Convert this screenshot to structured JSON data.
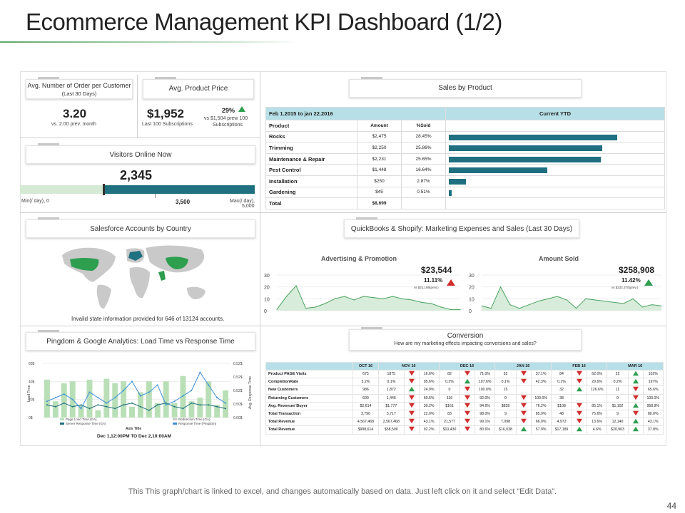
{
  "page": {
    "title": "Ecommerce Management KPI Dashboard (1/2)",
    "footer": "This This graph/chart is linked to excel, and changes automatically based on data. Just left click on it and select “Edit Data”.",
    "page_number": "44"
  },
  "kpi": {
    "orders": {
      "label": "Avg. Number of Order per Customer",
      "label_sub": "(Last 30 Days)",
      "value": "3.20",
      "sub": "vs. 2.00 prev. month"
    },
    "price": {
      "label": "Avg. Product Price",
      "value": "$1,952",
      "sub": "Last 100 Subscriptions",
      "pct": "29%",
      "pct_sub1": "vs $1,504  prew  100",
      "pct_sub2": "Subscriptions"
    },
    "visitors": {
      "label": "Visitors Online Now",
      "value": "2,345",
      "fill_fraction": 0.3538,
      "goal_fraction": 0.5,
      "min": "Min(/ day), 0",
      "mid": "3,500",
      "max1": "Max(/ day),",
      "max2": "5,000"
    }
  },
  "sales": {
    "label": "Sales by Product",
    "period": "Feb 1.2015 to jan 22.2016",
    "current": "Current YTD",
    "col_product": "Product",
    "col_amount": "Amount",
    "col_sold": "%Sold",
    "rows": [
      {
        "name": "Rocks",
        "amount": "$2,475",
        "pct": "28.45%",
        "share": 28.45
      },
      {
        "name": "Trimming",
        "amount": "$2,250",
        "pct": "25.86%",
        "share": 25.86
      },
      {
        "name": "Maintenance & Repair",
        "amount": "$2,231",
        "pct": "25.65%",
        "share": 25.65
      },
      {
        "name": "Pest Control",
        "amount": "$1,448",
        "pct": "16.64%",
        "share": 16.64
      },
      {
        "name": "Installation",
        "amount": "$250",
        "pct": "2.87%",
        "share": 2.87
      },
      {
        "name": "Gardening",
        "amount": "$45",
        "pct": "0.51%",
        "share": 0.51
      }
    ],
    "total_label": "Total",
    "total": "$8,699"
  },
  "map": {
    "label": "Salesforce Accounts by Country",
    "note": "Invalid state information provided for 646 of 13124 accounts."
  },
  "qb": {
    "label": "QuickBooks & Shopify: Marketing Expenses and Sales (Last 30 Days)"
  },
  "ping": {
    "label": "Pingdom & Google Analytics: Load Time vs Response Time",
    "ylabel": "Load Time",
    "y2label": "Avg. Response Time",
    "axis_title": "Axis Title",
    "caption": "Dec 1,12:00PM TO Dec 2,10:00AM",
    "legend": [
      "Page Load Time (GA)",
      "Redirection Time (GA)",
      "Server Response Time (GA)",
      "Response Time (Pingdom)"
    ]
  },
  "conversion": {
    "label": "Conversion",
    "sub": "How are my marketing effects impacting conversions and sales?",
    "months": [
      "OCT 16",
      "NOV 16",
      "DEC 16",
      "JAN 16",
      "FEB 16",
      "MAR 16"
    ],
    "rows": [
      {
        "name": "Product PAGE Visits",
        "cells": [
          [
            "675"
          ],
          [
            "1875",
            "dn",
            "16.6%"
          ],
          [
            "82",
            "dn",
            "71.0%"
          ],
          [
            "52",
            "dn",
            "37.1%"
          ],
          [
            "84",
            "dn",
            "62.0%"
          ],
          [
            "22",
            "up",
            "102%"
          ]
        ]
      },
      {
        "name": "CompletionRate",
        "cells": [
          [
            "3.2%"
          ],
          [
            "0.1%",
            "dn",
            "95.6%"
          ],
          [
            "0.2%",
            "up",
            "107.6%"
          ],
          [
            "0.1%",
            "dn",
            "42.3%"
          ],
          [
            "0.1%",
            "dn",
            "29.6%"
          ],
          [
            "0.2%",
            "up",
            "197%"
          ]
        ]
      },
      {
        "name": "New Customers",
        "cells": [
          [
            "986"
          ],
          [
            "1,872",
            "up",
            "24.9%"
          ],
          [
            "0",
            "dn",
            "100.0%"
          ],
          [
            "15",
            "",
            " "
          ],
          [
            "32",
            "up",
            "126.6%"
          ],
          [
            "11",
            "dn",
            "65.6%"
          ]
        ]
      },
      {
        "name": "Returning Customers",
        "cells": [
          [
            "600"
          ],
          [
            "1,446",
            "dn",
            "60.5%"
          ],
          [
            "116",
            "dn",
            "92.0%"
          ],
          [
            "0",
            "dn",
            "100.0%"
          ],
          [
            "38",
            "",
            " "
          ],
          [
            "0",
            "dn",
            "100.0%"
          ]
        ]
      },
      {
        "name": "Avg. Revenue/ Buyer",
        "cells": [
          [
            "$2,614"
          ],
          [
            "$1,777",
            "dn",
            "30.2%"
          ],
          [
            "$161",
            "dn",
            "94.6%"
          ],
          [
            "$828",
            "dn",
            "76.2%"
          ],
          [
            "$108",
            "dn",
            "85.1%"
          ],
          [
            "$1,102",
            "up",
            "958.9%"
          ]
        ]
      },
      {
        "name": "Total Transaction",
        "cells": [
          [
            "3,790"
          ],
          [
            "3,717",
            "dn",
            "22.0%"
          ],
          [
            "83",
            "dn",
            "98.0%"
          ],
          [
            "9",
            "dn",
            "85.0%"
          ],
          [
            "48",
            "dn",
            "75.6%"
          ],
          [
            "9",
            "dn",
            "80.0%"
          ]
        ]
      },
      {
        "name": "Total Revenue",
        "cells": [
          [
            "4,567,468"
          ],
          [
            "2,567,468",
            "dn",
            "43.1%"
          ],
          [
            "21,577",
            "dn",
            "99.1%"
          ],
          [
            "7,098",
            "dn",
            "66.0%"
          ],
          [
            "4,972",
            "dn",
            "13.6%"
          ],
          [
            "12,140",
            "up",
            "43.1%"
          ]
        ]
      },
      {
        "name": "Total Revenue",
        "cells": [
          [
            "$998,614"
          ],
          [
            "$58,500",
            "dn",
            "92.2%"
          ],
          [
            "$10,430",
            "dn",
            "80.6%"
          ],
          [
            "$16,038",
            "up",
            "57.9%"
          ],
          [
            "$17,189",
            "up",
            "4.6%"
          ],
          [
            "$20,903",
            "up",
            "37.8%"
          ]
        ]
      }
    ]
  },
  "chart_data": [
    {
      "type": "area",
      "title": "Advertising & Promotion",
      "x": [
        1,
        2,
        3,
        4,
        5,
        6,
        7,
        8,
        9,
        10,
        11,
        12,
        13,
        14,
        15,
        16,
        17,
        18,
        19,
        20
      ],
      "values": [
        1,
        12,
        21,
        2,
        3,
        6,
        10,
        12,
        9,
        12,
        11,
        10,
        12,
        10,
        9,
        7,
        6,
        3,
        1,
        1
      ],
      "ylim": [
        0,
        30
      ],
      "yticks": [
        "0",
        "10",
        "20",
        "30"
      ],
      "headline": "$23,544",
      "change": "11.11%",
      "change_sub": "vs $21,189(prev.)"
    },
    {
      "type": "area",
      "title": "Amount Sold",
      "x": [
        1,
        2,
        3,
        4,
        5,
        6,
        7,
        8,
        9,
        10,
        11,
        12,
        13,
        14,
        15,
        16,
        17,
        18,
        19,
        20
      ],
      "values": [
        4,
        2,
        20,
        5,
        2,
        5,
        8,
        10,
        12,
        9,
        2,
        10,
        9,
        8,
        7,
        6,
        10,
        3,
        5,
        4
      ],
      "ylim": [
        0,
        30
      ],
      "yticks": [
        "0",
        "10",
        "20",
        "30"
      ],
      "headline": "$258,908",
      "change": "11.42%",
      "change_sub": "vs $232,370(prev.)"
    },
    {
      "type": "bar",
      "title": "Pingdom & Google Analytics",
      "categories": [
        "1",
        "2",
        "3",
        "4",
        "5",
        "6",
        "7",
        "8",
        "9",
        "10",
        "11",
        "12",
        "13",
        "14",
        "15",
        "16",
        "17",
        "18",
        "19",
        "20",
        "21",
        "22"
      ],
      "series": [
        {
          "name": "Page Load Time (GA)",
          "values": [
            42,
            18,
            38,
            40,
            14,
            42,
            8,
            43,
            38,
            40,
            12,
            28,
            40,
            16,
            40,
            16,
            46,
            18,
            22,
            40,
            14,
            30
          ]
        },
        {
          "name": "Server Response Time (GA)",
          "values": [
            14,
            12,
            16,
            12,
            14,
            10,
            14,
            12,
            10,
            14,
            16,
            12,
            8,
            14,
            16,
            12,
            10,
            16,
            14,
            14,
            12,
            10
          ]
        },
        {
          "name": "Response Time (Pingdom)",
          "values": [
            18,
            22,
            26,
            20,
            10,
            28,
            22,
            16,
            22,
            30,
            40,
            24,
            28,
            36,
            14,
            18,
            24,
            30,
            50,
            36,
            22,
            16
          ]
        }
      ],
      "yticks": [
        "0$",
        "20$",
        "40$",
        "60$"
      ],
      "y2ticks": [
        "0.00$",
        "0.50$",
        "0.52$",
        "0.52$",
        "0.52$"
      ],
      "ylim": [
        0,
        60
      ]
    }
  ]
}
